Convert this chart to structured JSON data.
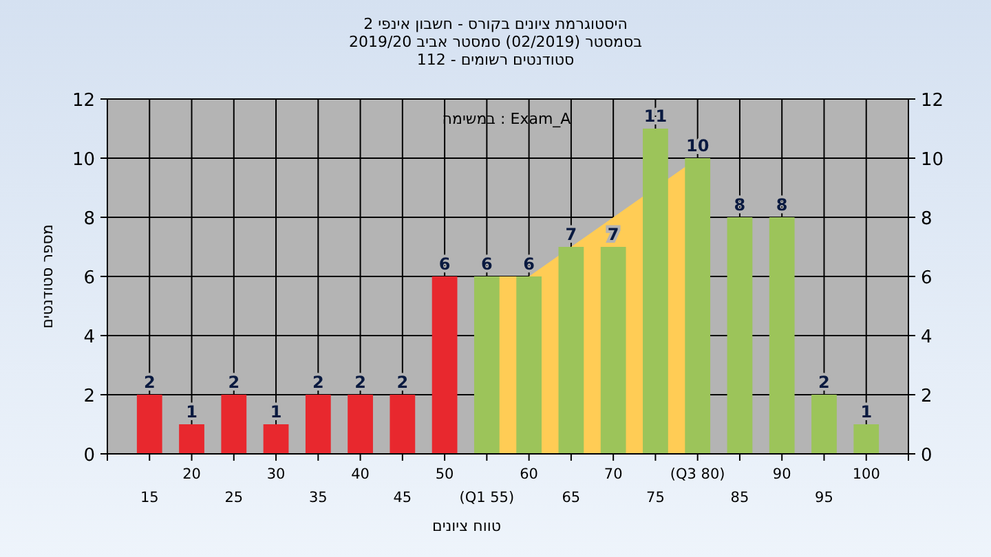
{
  "chart_data": {
    "type": "bar",
    "title": "היסטוגרמת ציונים בקורס - חשבון אינפי 2",
    "subtitle": "בסמסטר  (02/2019)  סמסטר אביב 2019/20\nסטודנטים רשומים - 112",
    "xlabel": "טווח ציונים",
    "ylabel": "מספר סטודנטים",
    "annotations": [
      "במשימה : Exam_A"
    ],
    "categories": [
      "15",
      "20",
      "25",
      "30",
      "35",
      "40",
      "45",
      "50",
      "(Q1 55)",
      "60",
      "65",
      "70",
      "75",
      "(Q3 80)",
      "85",
      "90",
      "95",
      "100"
    ],
    "series": [
      {
        "type": "area",
        "color": "#ffcc55",
        "values": [
          null,
          null,
          null,
          null,
          null,
          null,
          null,
          null,
          6,
          6,
          7,
          8,
          null,
          10,
          null,
          null,
          null,
          null
        ]
      },
      {
        "data_labels": true,
        "colors": [
          "#e8282e",
          "#e8282e",
          "#e8282e",
          "#e8282e",
          "#e8282e",
          "#e8282e",
          "#e8282e",
          "#e8282e",
          "#9cc45a",
          "#9cc45a",
          "#9cc45a",
          "#9cc45a",
          "#9cc45a",
          "#9cc45a",
          "#9cc45a",
          "#9cc45a",
          "#9cc45a",
          "#9cc45a"
        ],
        "values": [
          2,
          1,
          2,
          1,
          2,
          2,
          2,
          6,
          6,
          6,
          7,
          7,
          11,
          10,
          8,
          8,
          2,
          1
        ]
      }
    ],
    "ylim": [
      0,
      12
    ],
    "yticks": [
      0,
      2,
      4,
      6,
      8,
      10,
      12
    ],
    "y2lim": [
      0,
      12
    ],
    "y2ticks": [
      0,
      2,
      4,
      6,
      8,
      10,
      12
    ],
    "grid": true
  }
}
